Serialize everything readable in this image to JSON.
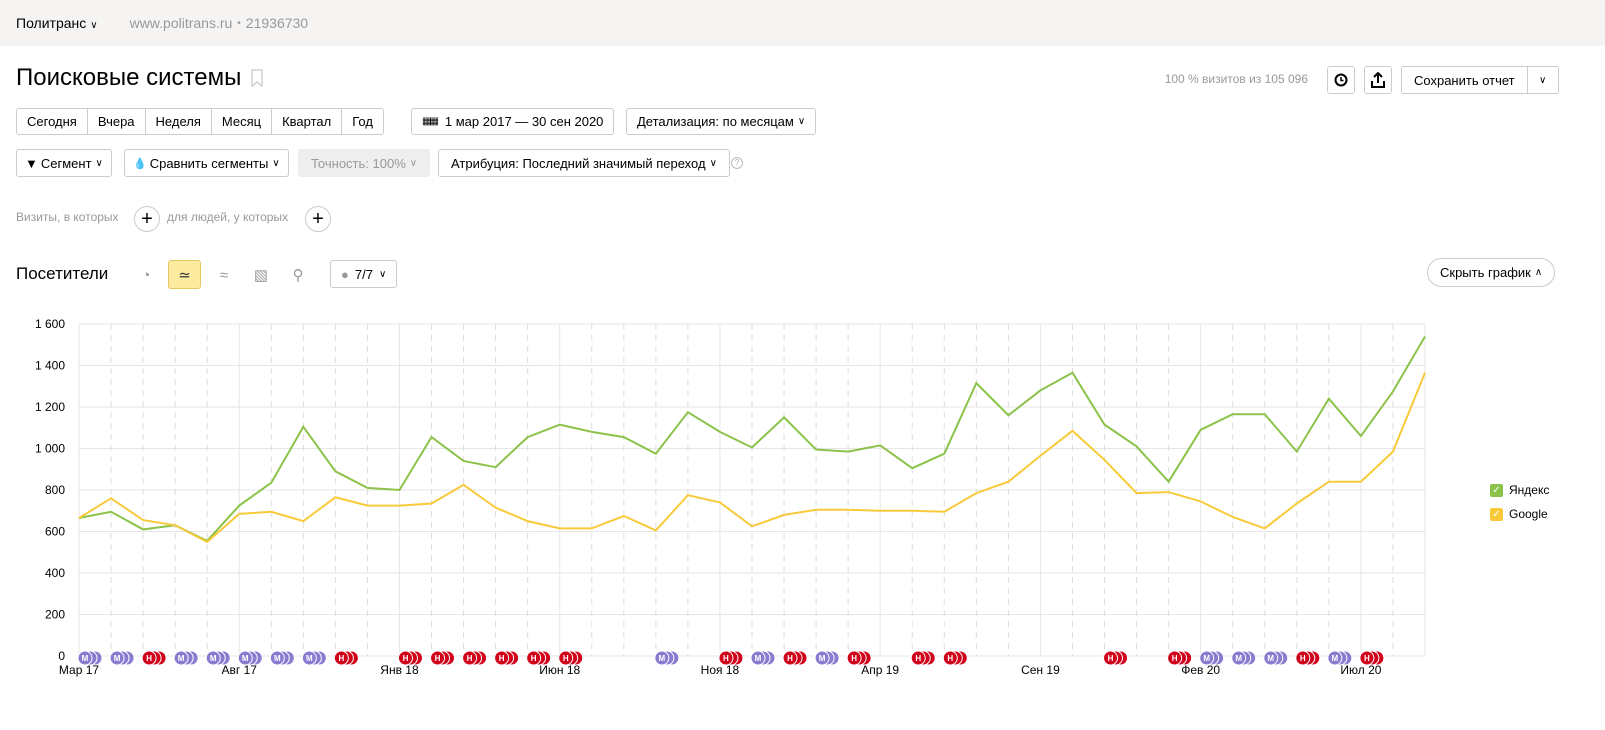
{
  "topbar": {
    "counter": "Политранс",
    "site": "www.politrans.ru",
    "sep": "•",
    "id": "21936730"
  },
  "title": "Поисковые системы",
  "summary": "100 % визитов из 105 096",
  "save_label": "Сохранить отчет",
  "periods": [
    "Сегодня",
    "Вчера",
    "Неделя",
    "Месяц",
    "Квартал",
    "Год"
  ],
  "date_range": "1 мар 2017 — 30 сен 2020",
  "detail": "Детализация: по месяцам",
  "segment": "Сегмент",
  "compare": "Сравнить сегменты",
  "accuracy": "Точность: 100%",
  "attribution": "Атрибуция: Последний значимый переход",
  "help": "?",
  "filter": {
    "visits": "Визиты, в которых",
    "people": "для людей, у которых"
  },
  "chart_header": {
    "title": "Посетители",
    "notes": "7/7",
    "hide": "Скрыть график"
  },
  "chart_data": {
    "type": "line",
    "ylim": [
      0,
      1600
    ],
    "yticks": [
      0,
      200,
      400,
      600,
      800,
      1000,
      1200,
      1400,
      1600
    ],
    "ytick_labels": [
      "0",
      "200",
      "400",
      "600",
      "800",
      "1 000",
      "1 200",
      "1 400",
      "1 600"
    ],
    "grid": true,
    "legend": "right",
    "categories": [
      "2017-03",
      "2017-04",
      "2017-05",
      "2017-06",
      "2017-07",
      "2017-08",
      "2017-09",
      "2017-10",
      "2017-11",
      "2017-12",
      "2018-01",
      "2018-02",
      "2018-03",
      "2018-04",
      "2018-05",
      "2018-06",
      "2018-07",
      "2018-08",
      "2018-09",
      "2018-10",
      "2018-11",
      "2018-12",
      "2019-01",
      "2019-02",
      "2019-03",
      "2019-04",
      "2019-05",
      "2019-06",
      "2019-07",
      "2019-08",
      "2019-09",
      "2019-10",
      "2019-11",
      "2019-12",
      "2020-01",
      "2020-02",
      "2020-03",
      "2020-04",
      "2020-05",
      "2020-06",
      "2020-07",
      "2020-08",
      "2020-09"
    ],
    "xticks": [
      {
        "at": "2017-03",
        "label": "Мар 17"
      },
      {
        "at": "2017-08",
        "label": "Авг 17"
      },
      {
        "at": "2018-01",
        "label": "Янв 18"
      },
      {
        "at": "2018-06",
        "label": "Июн 18"
      },
      {
        "at": "2018-11",
        "label": "Ноя 18"
      },
      {
        "at": "2019-04",
        "label": "Апр 19"
      },
      {
        "at": "2019-09",
        "label": "Сен 19"
      },
      {
        "at": "2020-02",
        "label": "Фев 20"
      },
      {
        "at": "2020-07",
        "label": "Июл 20"
      }
    ],
    "series": [
      {
        "name": "Яндекс",
        "color": "#8bc34a",
        "values": [
          665,
          695,
          610,
          630,
          555,
          725,
          835,
          1105,
          890,
          810,
          800,
          1055,
          940,
          910,
          1055,
          1115,
          1080,
          1055,
          975,
          1175,
          1080,
          1005,
          1150,
          995,
          985,
          1015,
          905,
          975,
          1315,
          1160,
          1280,
          1365,
          1115,
          1010,
          840,
          1090,
          1165,
          1165,
          985,
          1240,
          1060,
          1275,
          1540
        ]
      },
      {
        "name": "Google",
        "color": "#f8ca3a",
        "values": [
          665,
          760,
          655,
          630,
          550,
          685,
          695,
          650,
          765,
          725,
          725,
          735,
          825,
          715,
          650,
          615,
          615,
          675,
          605,
          775,
          740,
          625,
          680,
          705,
          705,
          700,
          700,
          695,
          785,
          840,
          965,
          1085,
          945,
          785,
          790,
          745,
          670,
          615,
          735,
          840,
          840,
          985,
          1365
        ]
      }
    ],
    "annotations": [
      {
        "at": "2017-03",
        "type": "М"
      },
      {
        "at": "2017-04",
        "type": "М"
      },
      {
        "at": "2017-05",
        "type": "Н"
      },
      {
        "at": "2017-06",
        "type": "М"
      },
      {
        "at": "2017-07",
        "type": "М"
      },
      {
        "at": "2017-08",
        "type": "М"
      },
      {
        "at": "2017-09",
        "type": "М"
      },
      {
        "at": "2017-10",
        "type": "М"
      },
      {
        "at": "2017-11",
        "type": "Н"
      },
      {
        "at": "2018-01",
        "type": "Н"
      },
      {
        "at": "2018-02",
        "type": "Н"
      },
      {
        "at": "2018-03",
        "type": "Н"
      },
      {
        "at": "2018-04",
        "type": "Н"
      },
      {
        "at": "2018-05",
        "type": "Н"
      },
      {
        "at": "2018-06",
        "type": "Н"
      },
      {
        "at": "2018-09",
        "type": "М"
      },
      {
        "at": "2018-11",
        "type": "Н"
      },
      {
        "at": "2018-12",
        "type": "М"
      },
      {
        "at": "2019-01",
        "type": "Н"
      },
      {
        "at": "2019-02",
        "type": "М"
      },
      {
        "at": "2019-03",
        "type": "Н"
      },
      {
        "at": "2019-05",
        "type": "Н"
      },
      {
        "at": "2019-06",
        "type": "Н"
      },
      {
        "at": "2019-11",
        "type": "Н"
      },
      {
        "at": "2020-01",
        "type": "Н"
      },
      {
        "at": "2020-02",
        "type": "М"
      },
      {
        "at": "2020-03",
        "type": "М"
      },
      {
        "at": "2020-04",
        "type": "М"
      },
      {
        "at": "2020-05",
        "type": "Н"
      },
      {
        "at": "2020-06",
        "type": "М"
      },
      {
        "at": "2020-07",
        "type": "Н"
      }
    ],
    "annotation_colors": {
      "М": "#8a7bd1",
      "Н": "#d0021b"
    }
  }
}
